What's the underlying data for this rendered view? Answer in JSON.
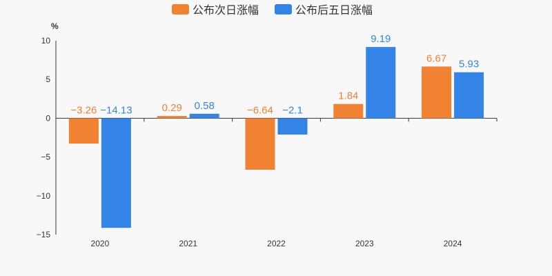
{
  "chart_data": {
    "type": "bar",
    "unit": "%",
    "categories": [
      "2020",
      "2021",
      "2022",
      "2023",
      "2024"
    ],
    "series": [
      {
        "name": "公布次日涨幅",
        "color": "#f08231",
        "values": [
          -3.26,
          0.29,
          -6.64,
          1.84,
          6.67
        ],
        "labels": [
          "−3.26",
          "0.29",
          "−6.64",
          "1.84",
          "6.67"
        ]
      },
      {
        "name": "公布后五日涨幅",
        "color": "#3384e6",
        "values": [
          -14.13,
          0.58,
          -2.1,
          9.19,
          5.93
        ],
        "labels": [
          "−14.13",
          "0.58",
          "−2.1",
          "9.19",
          "5.93"
        ]
      }
    ],
    "ylim": [
      -15,
      10
    ],
    "yticks": [
      10,
      5,
      0,
      -5,
      -10,
      -15
    ],
    "ytick_labels": [
      "10",
      "5",
      "0",
      "−5",
      "−10",
      "−15"
    ],
    "legend_position": "top-center",
    "grid": false
  }
}
